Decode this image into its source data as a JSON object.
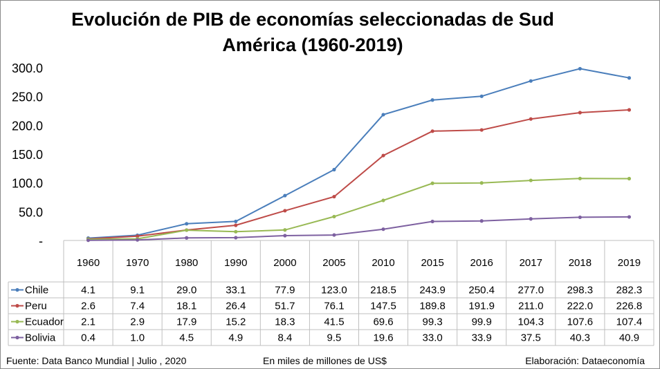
{
  "title_lines": [
    "Evolución de PIB de economías seleccionadas de Sud",
    "América (1960-2019)"
  ],
  "footer": {
    "source": "Fuente: Data Banco Mundial | Julio , 2020",
    "units": "En miles de millones de US$",
    "credit": "Elaboración: Dataeconomía"
  },
  "chart_data": {
    "type": "line",
    "title": "Evolución de PIB de economías seleccionadas de Sud América (1960-2019)",
    "categories": [
      "1960",
      "1970",
      "1980",
      "1990",
      "2000",
      "2005",
      "2010",
      "2015",
      "2016",
      "2017",
      "2018",
      "2019"
    ],
    "ylim": [
      0,
      300
    ],
    "yticks": [
      0,
      50,
      100,
      150,
      200,
      250,
      300
    ],
    "ytick_labels": [
      "-",
      "50.0",
      "100.0",
      "150.0",
      "200.0",
      "250.0",
      "300.0"
    ],
    "grid": false,
    "legend": "data-table",
    "series": [
      {
        "name": "Chile",
        "color": "#4a7ebb",
        "values": [
          4.1,
          9.1,
          29.0,
          33.1,
          77.9,
          123.0,
          218.5,
          243.9,
          250.4,
          277.0,
          298.3,
          282.3
        ]
      },
      {
        "name": "Peru",
        "color": "#be4b48",
        "values": [
          2.6,
          7.4,
          18.1,
          26.4,
          51.7,
          76.1,
          147.5,
          189.8,
          191.9,
          211.0,
          222.0,
          226.8
        ]
      },
      {
        "name": "Ecuador",
        "color": "#98b954",
        "values": [
          2.1,
          2.9,
          17.9,
          15.2,
          18.3,
          41.5,
          69.6,
          99.3,
          99.9,
          104.3,
          107.6,
          107.4
        ]
      },
      {
        "name": "Bolivia",
        "color": "#7d60a0",
        "values": [
          0.4,
          1.0,
          4.5,
          4.9,
          8.4,
          9.5,
          19.6,
          33.0,
          33.9,
          37.5,
          40.3,
          40.9
        ]
      }
    ]
  }
}
